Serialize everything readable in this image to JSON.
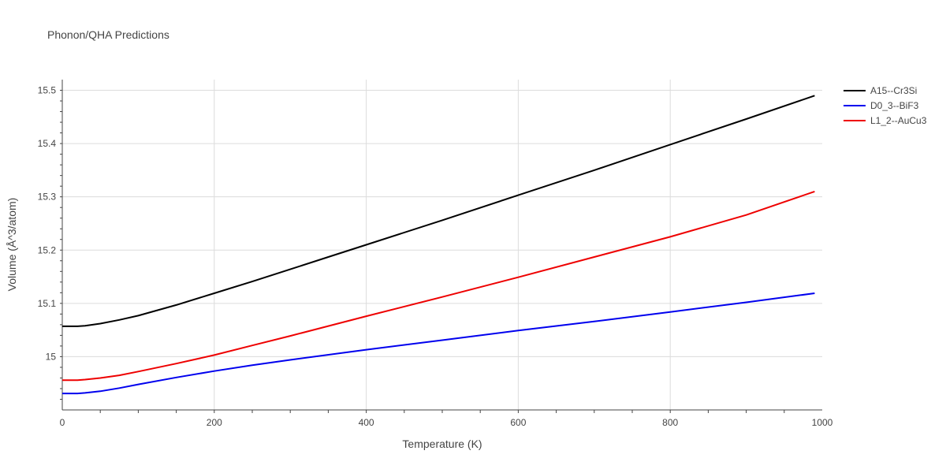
{
  "chart_data": {
    "type": "line",
    "title": "Phonon/QHA Predictions",
    "xlabel": "Temperature (K)",
    "ylabel": "Volume (Å^3/atom)",
    "xlim": [
      0,
      1000
    ],
    "ylim": [
      14.9,
      15.52
    ],
    "xticks": [
      0,
      200,
      400,
      600,
      800,
      1000
    ],
    "xtick_labels": [
      "0",
      "200",
      "400",
      "600",
      "800",
      "1000"
    ],
    "yticks": [
      15.0,
      15.1,
      15.2,
      15.3,
      15.4,
      15.5
    ],
    "ytick_labels": [
      "15",
      "15.1",
      "15.2",
      "15.3",
      "15.4",
      "15.5"
    ],
    "grid": true,
    "legend_position": "top-right",
    "series": [
      {
        "name": "A15--Cr3Si",
        "color": "#000000",
        "x": [
          0,
          20,
          30,
          50,
          75,
          100,
          150,
          200,
          250,
          300,
          350,
          400,
          500,
          600,
          700,
          800,
          900,
          990
        ],
        "y": [
          15.057,
          15.057,
          15.058,
          15.062,
          15.069,
          15.077,
          15.097,
          15.119,
          15.141,
          15.164,
          15.187,
          15.21,
          15.256,
          15.303,
          15.35,
          15.398,
          15.446,
          15.49
        ]
      },
      {
        "name": "D0_3--BiF3",
        "color": "#0000ee",
        "x": [
          0,
          20,
          30,
          50,
          75,
          100,
          150,
          200,
          250,
          300,
          400,
          500,
          600,
          700,
          800,
          900,
          990
        ],
        "y": [
          14.931,
          14.931,
          14.932,
          14.935,
          14.941,
          14.948,
          14.961,
          14.973,
          14.984,
          14.994,
          15.013,
          15.031,
          15.049,
          15.066,
          15.084,
          15.102,
          15.119
        ]
      },
      {
        "name": "L1_2--AuCu3",
        "color": "#ee0000",
        "x": [
          0,
          20,
          30,
          50,
          75,
          100,
          150,
          200,
          250,
          300,
          400,
          500,
          600,
          700,
          800,
          900,
          990
        ],
        "y": [
          14.956,
          14.956,
          14.957,
          14.96,
          14.965,
          14.972,
          14.987,
          15.003,
          15.021,
          15.039,
          15.076,
          15.112,
          15.149,
          15.187,
          15.225,
          15.266,
          15.31
        ]
      }
    ]
  }
}
